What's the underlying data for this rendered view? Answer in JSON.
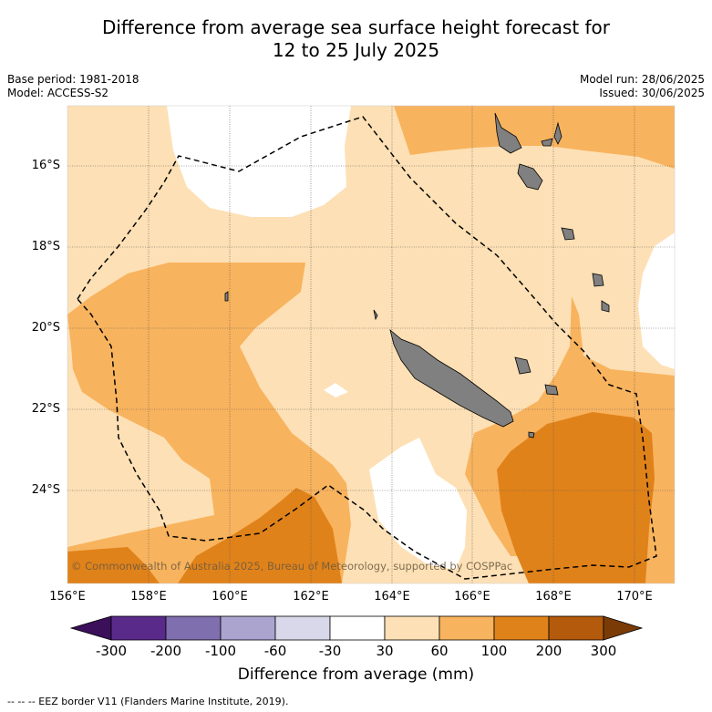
{
  "title": {
    "line1": "Difference from average sea surface height forecast for",
    "line2": "12 to 25 July 2025"
  },
  "meta": {
    "base_period": "Base period: 1981-2018",
    "model": "Model: ACCESS-S2",
    "model_run": "Model run: 28/06/2025",
    "issued": "Issued: 30/06/2025"
  },
  "map": {
    "lat_labels": [
      "16°S",
      "18°S",
      "20°S",
      "22°S",
      "24°S"
    ],
    "lon_labels": [
      "156°E",
      "158°E",
      "160°E",
      "162°E",
      "164°E",
      "166°E",
      "168°E",
      "170°E"
    ],
    "credit": "© Commonwealth of Australia 2025, Bureau of Meteorology, supported by COSPPac",
    "land_color": "#808080"
  },
  "colorbar": {
    "title": "Difference from average (mm)",
    "ticks": [
      "-300",
      "-200",
      "-100",
      "-60",
      "-30",
      "30",
      "60",
      "100",
      "200",
      "300"
    ],
    "colors": [
      "#3b0f5a",
      "#5a2a8a",
      "#7f6fae",
      "#aba4cf",
      "#d8d8ea",
      "#ffffff",
      "#fde0b5",
      "#f8b35e",
      "#e0821a",
      "#b35a0c",
      "#7a3b06"
    ]
  },
  "footer": "-- -- -- EEZ border V11 (Flanders Marine Institute, 2019)."
}
